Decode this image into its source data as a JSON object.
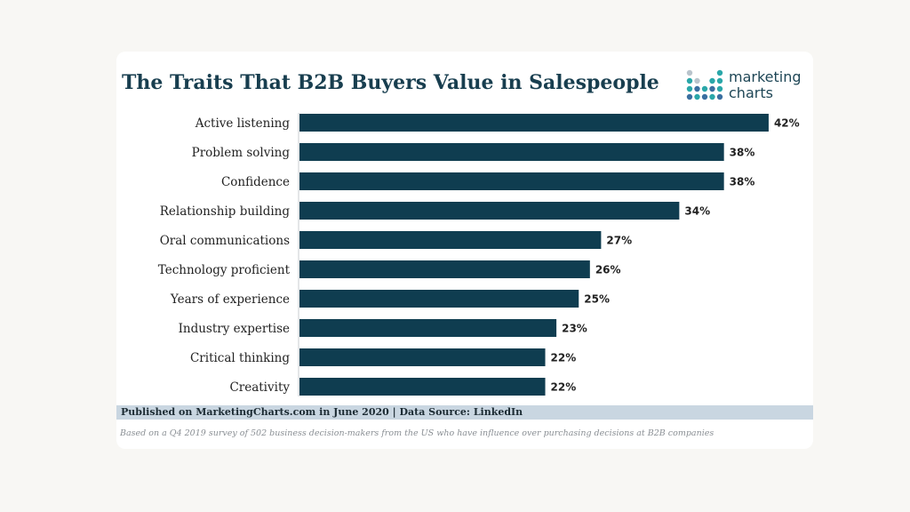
{
  "header": {
    "title": "The Traits That B2B Buyers Value in Salespeople"
  },
  "logo": {
    "line1": "marketing",
    "line2": "charts",
    "icon": "dot-matrix-logo-icon"
  },
  "chart_data": {
    "type": "bar",
    "orientation": "horizontal",
    "title": "The Traits That B2B Buyers Value in Salespeople",
    "categories": [
      "Active listening",
      "Problem solving",
      "Confidence",
      "Relationship building",
      "Oral communications",
      "Technology proficient",
      "Years of experience",
      "Industry expertise",
      "Critical thinking",
      "Creativity"
    ],
    "values": [
      42,
      38,
      38,
      34,
      27,
      26,
      25,
      23,
      22,
      22
    ],
    "value_labels": [
      "42%",
      "38%",
      "38%",
      "34%",
      "27%",
      "26%",
      "25%",
      "23%",
      "22%",
      "22%"
    ],
    "unit": "%",
    "xlabel": "",
    "ylabel": "",
    "grid": false,
    "bar_color": "#0f3d50"
  },
  "footer": {
    "source": "Published on MarketingCharts.com in June 2020 | Data Source: LinkedIn",
    "note": "Based on a Q4 2019 survey of 502 business decision-makers from the US who have influence over purchasing decisions at B2B companies"
  },
  "colors": {
    "title": "#183e4f",
    "bar": "#0f3d50",
    "source_bar": "#c9d6e1",
    "logo_teal": "#2aa7a9",
    "logo_blue": "#3a6fa0",
    "logo_gray": "#b9c4cc"
  }
}
